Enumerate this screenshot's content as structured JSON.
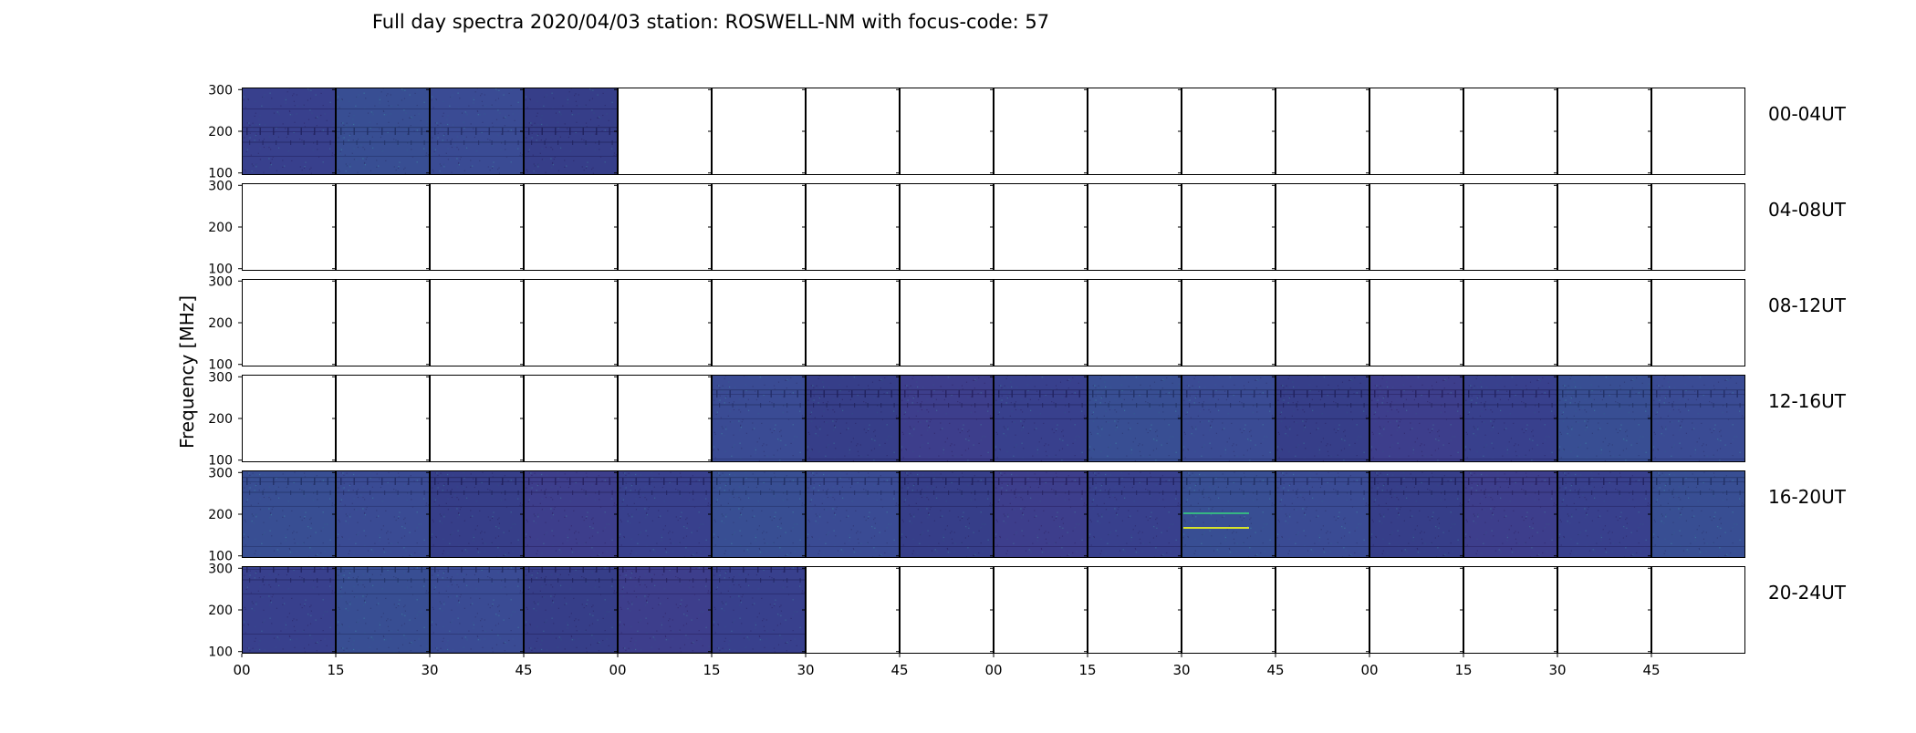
{
  "figure": {
    "title": "Full day spectra 2020/04/03 station: ROSWELL-NM with focus-code: 57",
    "ylabel": "Frequency [MHz]"
  },
  "chart_data": {
    "type": "heatmap",
    "title": "Full day spectra 2020/04/03 station: ROSWELL-NM with focus-code: 57",
    "xlabel": "",
    "ylabel": "Frequency [MHz]",
    "ylim": [
      95,
      305
    ],
    "y_ticks": [
      "100",
      "200",
      "300"
    ],
    "x_ticks": [
      "00",
      "15",
      "30",
      "45",
      "00",
      "15",
      "30",
      "45",
      "00",
      "15",
      "30",
      "45",
      "00",
      "15",
      "30",
      "45"
    ],
    "cells_per_row": 16,
    "cell_minutes": 15,
    "rows": [
      {
        "label": "00-04UT",
        "filled": [
          1,
          1,
          1,
          1,
          0,
          0,
          0,
          0,
          0,
          0,
          0,
          0,
          0,
          0,
          0,
          0
        ]
      },
      {
        "label": "04-08UT",
        "filled": [
          0,
          0,
          0,
          0,
          0,
          0,
          0,
          0,
          0,
          0,
          0,
          0,
          0,
          0,
          0,
          0
        ]
      },
      {
        "label": "08-12UT",
        "filled": [
          0,
          0,
          0,
          0,
          0,
          0,
          0,
          0,
          0,
          0,
          0,
          0,
          0,
          0,
          0,
          0
        ]
      },
      {
        "label": "12-16UT",
        "filled": [
          0,
          0,
          0,
          0,
          0,
          1,
          1,
          1,
          1,
          1,
          1,
          1,
          1,
          1,
          1,
          1
        ]
      },
      {
        "label": "16-20UT",
        "filled": [
          1,
          1,
          1,
          1,
          1,
          1,
          1,
          1,
          1,
          1,
          1,
          1,
          1,
          1,
          1,
          1
        ]
      },
      {
        "label": "20-24UT",
        "filled": [
          1,
          1,
          1,
          1,
          1,
          1,
          0,
          0,
          0,
          0,
          0,
          0,
          0,
          0,
          0,
          0
        ]
      }
    ],
    "colormap": "viridis",
    "colors": {
      "base": "#3b4592",
      "dark": "#2d2a6e",
      "purple": "#43196b",
      "teal": "#3e7aa1",
      "green": "#36b583",
      "yellow": "#d7e22a"
    }
  }
}
